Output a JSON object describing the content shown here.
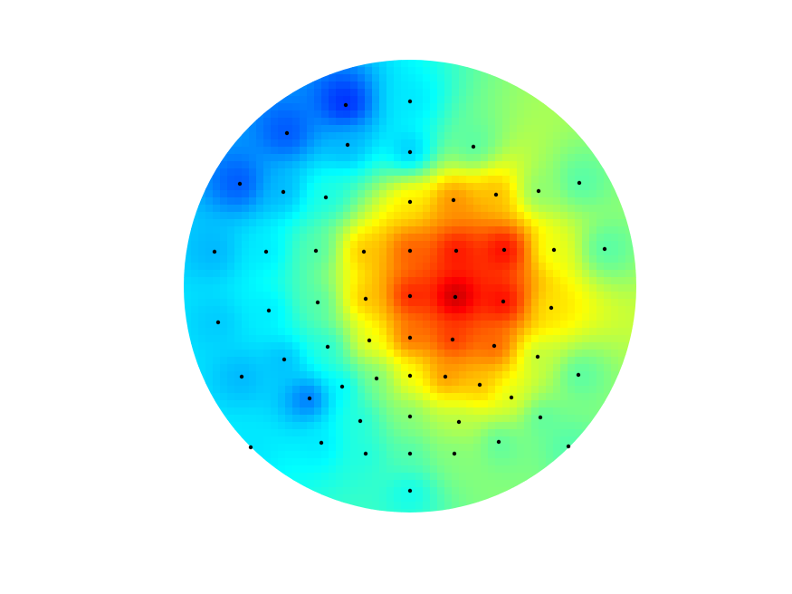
{
  "chart_data": {
    "type": "topoplot",
    "colormap": "jet",
    "clim": [
      0,
      1
    ],
    "xlim": [
      -250,
      250
    ],
    "ylim": [
      -250,
      250
    ],
    "marker_color": "#000000",
    "x": [
      0,
      -71,
      -136,
      -69,
      0,
      70,
      -188,
      -140,
      -93,
      0,
      48,
      95,
      142,
      187,
      -216,
      -159,
      -104,
      -51,
      0,
      51,
      104,
      159,
      215,
      -102,
      -49,
      0,
      50,
      103,
      156,
      -212,
      -156,
      -91,
      -45,
      0,
      47,
      93,
      141,
      -139,
      -186,
      -75,
      -37,
      0,
      39,
      77,
      186,
      -111,
      112,
      -55,
      0,
      54,
      144,
      -176,
      -98,
      -49,
      0,
      49,
      98,
      175,
      0
    ],
    "y": [
      204,
      200,
      169,
      156,
      148,
      154,
      113,
      104,
      98,
      93,
      95,
      101,
      105,
      114,
      38,
      38,
      39,
      38,
      39,
      39,
      40,
      40,
      41,
      -18,
      -14,
      -11,
      -12,
      -17,
      -24,
      -40,
      -27,
      -67,
      -60,
      -57,
      -59,
      -66,
      -78,
      -81,
      -100,
      -111,
      -102,
      -99,
      -100,
      -109,
      -98,
      -124,
      -123,
      -149,
      -144,
      -150,
      -145,
      -178,
      -173,
      -185,
      -185,
      -185,
      -172,
      -177,
      -226
    ],
    "values": [
      0.35,
      0.15,
      0.2,
      0.3,
      0.3,
      0.45,
      0.2,
      0.3,
      0.4,
      0.65,
      0.75,
      0.7,
      0.5,
      0.45,
      0.3,
      0.35,
      0.45,
      0.7,
      0.8,
      0.88,
      0.9,
      0.6,
      0.45,
      0.45,
      0.7,
      0.88,
      0.98,
      0.9,
      0.65,
      0.32,
      0.35,
      0.4,
      0.62,
      0.8,
      0.85,
      0.8,
      0.55,
      0.3,
      0.3,
      0.35,
      0.48,
      0.62,
      0.75,
      0.7,
      0.45,
      0.2,
      0.6,
      0.4,
      0.5,
      0.55,
      0.45,
      0.35,
      0.35,
      0.4,
      0.45,
      0.5,
      0.45,
      0.45,
      0.38
    ]
  }
}
